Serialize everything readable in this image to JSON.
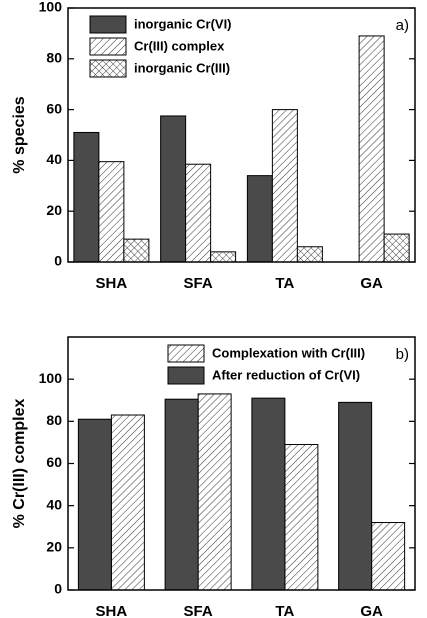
{
  "chart_data": [
    {
      "type": "bar",
      "ylabel": "% species",
      "panel_label": "a)",
      "categories": [
        "SHA",
        "SFA",
        "TA",
        "GA"
      ],
      "series": [
        {
          "name": "inorganic Cr(VI)",
          "color": "#4a4a4a",
          "hatch": "none",
          "values": [
            51,
            57.5,
            34,
            0
          ]
        },
        {
          "name": "Cr(III) complex",
          "color": "#ffffff",
          "hatch": "diagonal",
          "values": [
            39.5,
            38.5,
            60,
            89
          ]
        },
        {
          "name": "inorganic Cr(III)",
          "color": "#ffffff",
          "hatch": "cross",
          "values": [
            9,
            4,
            6,
            11
          ]
        }
      ],
      "ylim": [
        0,
        100
      ],
      "yticks": [
        0,
        20,
        40,
        60,
        80,
        100
      ],
      "legend": "upper left"
    },
    {
      "type": "bar",
      "ylabel": "% Cr(III) complex",
      "panel_label": "b)",
      "categories": [
        "SHA",
        "SFA",
        "TA",
        "GA"
      ],
      "series": [
        {
          "name": "Complexation with Cr(III)",
          "color": "#ffffff",
          "hatch": "diagonal",
          "values": [
            83,
            93,
            69,
            32
          ]
        },
        {
          "name": "After reduction of Cr(VI)",
          "color": "#4a4a4a",
          "hatch": "none",
          "values": [
            81,
            90.5,
            91,
            89
          ]
        }
      ],
      "bar_order": [
        1,
        0
      ],
      "ylim": [
        0,
        120
      ],
      "yticks": [
        0,
        20,
        40,
        60,
        80,
        100
      ],
      "legend": "upper center"
    }
  ]
}
